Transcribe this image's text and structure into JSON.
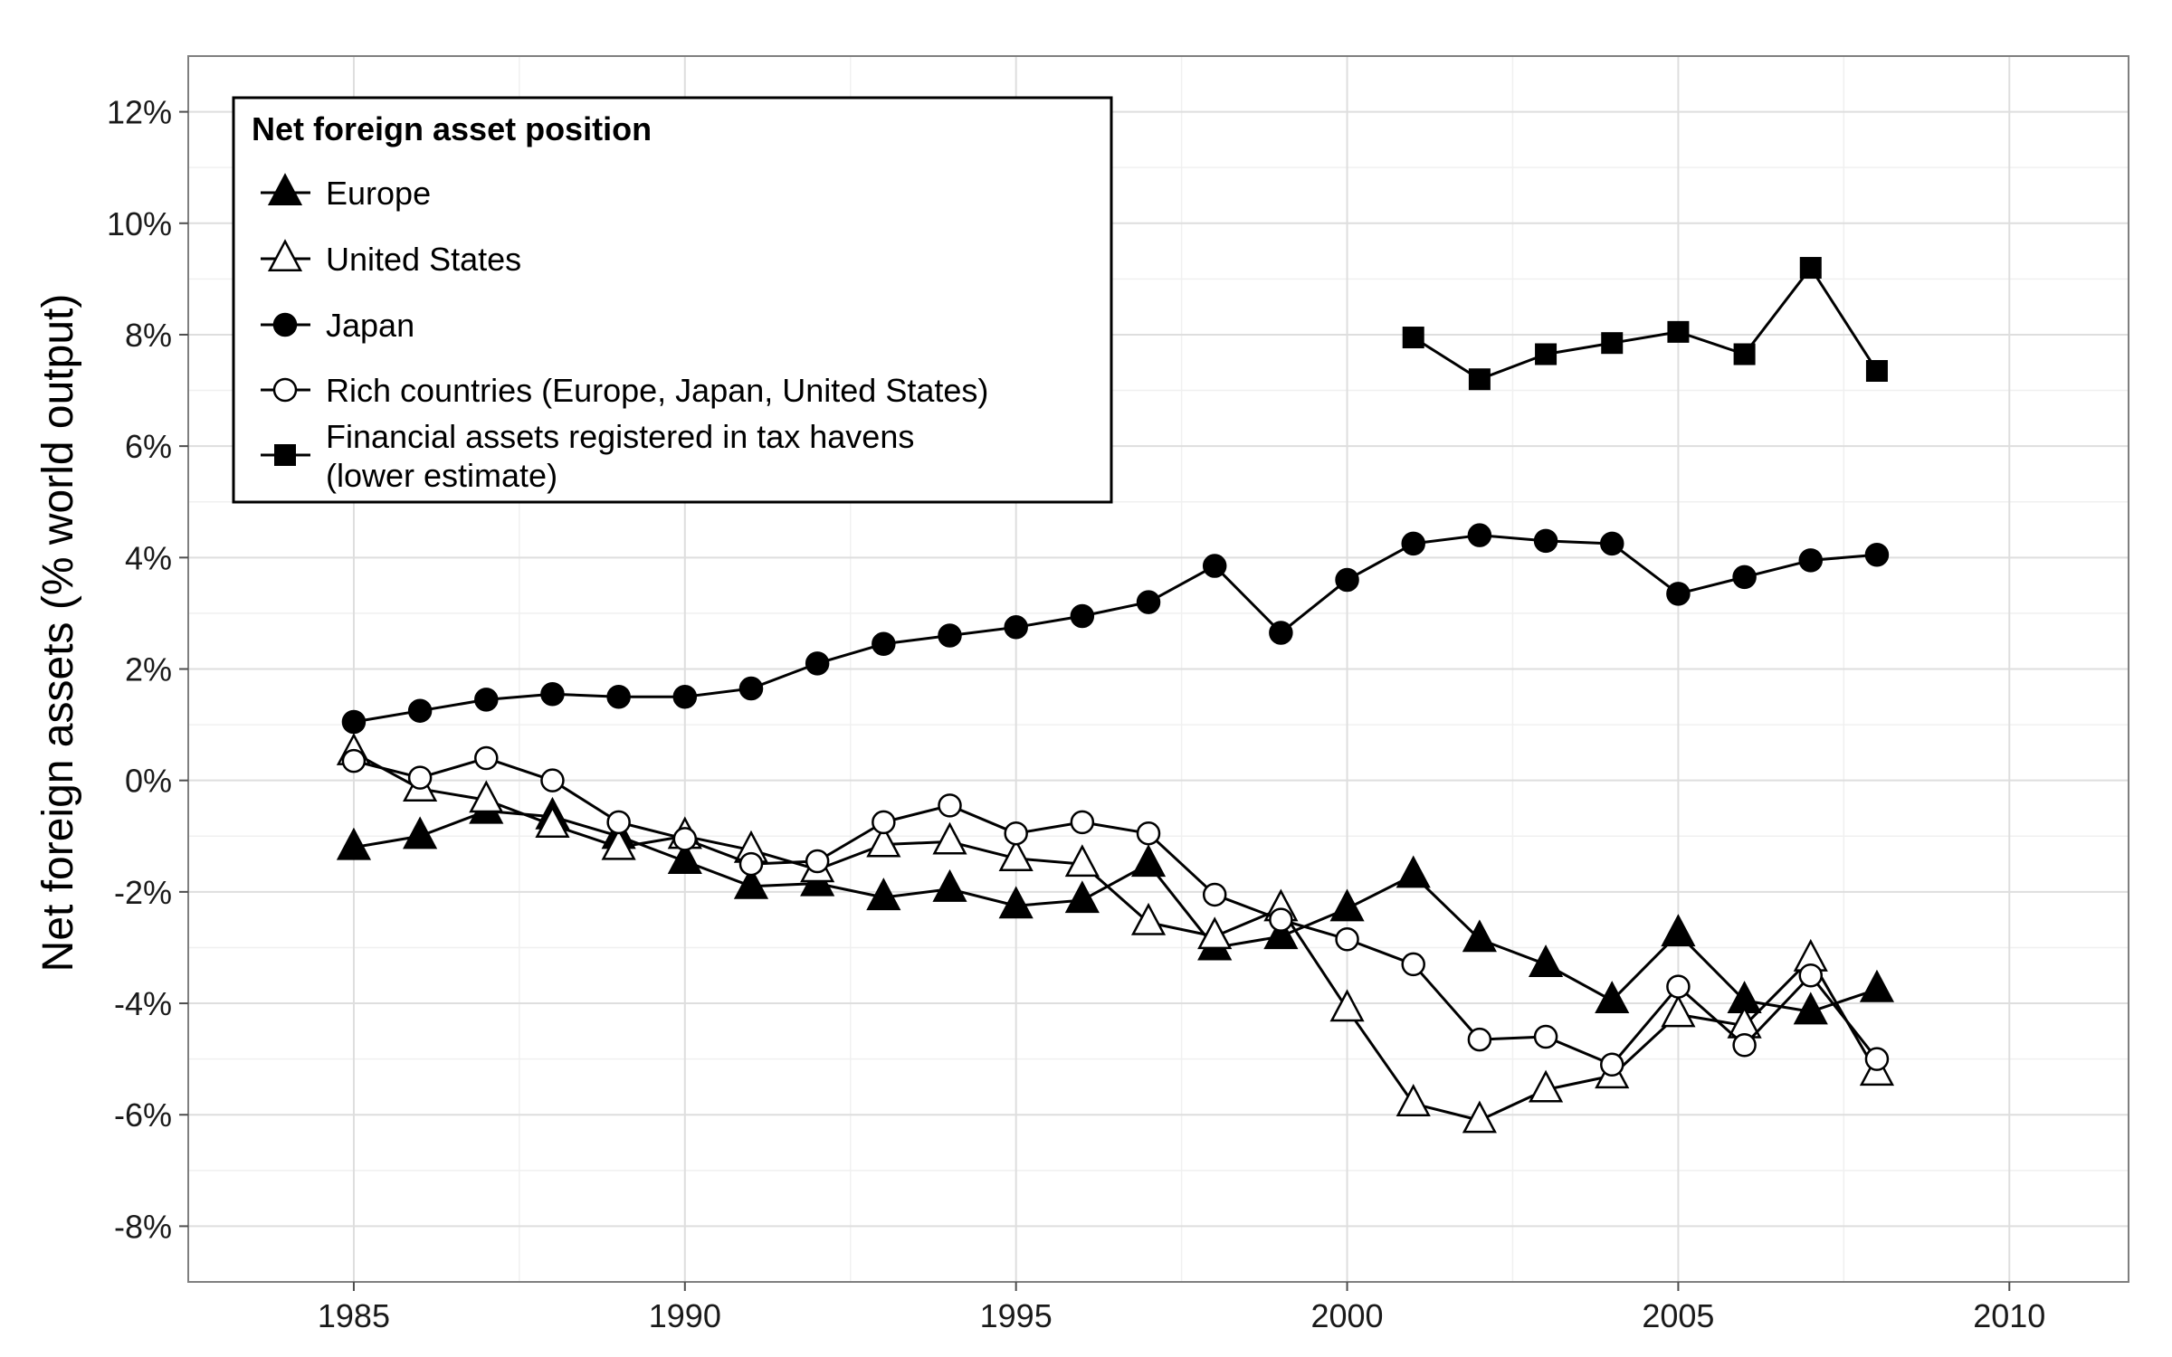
{
  "chart_data": {
    "type": "line",
    "xlabel": "",
    "ylabel": "Net foreign assets (% world output)",
    "xlim": [
      1982.5,
      2011.8
    ],
    "ylim": [
      -9,
      13
    ],
    "x_ticks": [
      1985,
      1990,
      1995,
      2000,
      2005,
      2010
    ],
    "x_tick_labels": [
      "1985",
      "1990",
      "1995",
      "2000",
      "2005",
      "2010"
    ],
    "y_ticks": [
      -8,
      -6,
      -4,
      -2,
      0,
      2,
      4,
      6,
      8,
      10,
      12
    ],
    "y_tick_labels": [
      "-8%",
      "-6%",
      "-4%",
      "-2%",
      "0%",
      "2%",
      "4%",
      "6%",
      "8%",
      "10%",
      "12%"
    ],
    "grid": true,
    "legend": {
      "title": "Net foreign asset position",
      "placement": "top-left",
      "entries": [
        {
          "label": "Europe",
          "marker": "triangle-filled"
        },
        {
          "label": "United States",
          "marker": "triangle-open"
        },
        {
          "label": "Japan",
          "marker": "circle-filled"
        },
        {
          "label": "Rich countries (Europe, Japan, United States)",
          "marker": "circle-open"
        },
        {
          "label_lines": [
            "Financial assets registered in tax havens",
            "(lower estimate)"
          ],
          "marker": "square-filled"
        }
      ]
    },
    "series": [
      {
        "name": "Europe",
        "marker": "triangle-filled",
        "x": [
          1985,
          1986,
          1987,
          1988,
          1989,
          1990,
          1991,
          1992,
          1993,
          1994,
          1995,
          1996,
          1997,
          1998,
          1999,
          2000,
          2001,
          2002,
          2003,
          2004,
          2005,
          2006,
          2007,
          2008
        ],
        "values": [
          -1.2,
          -1.0,
          -0.55,
          -0.65,
          -1.0,
          -1.45,
          -1.9,
          -1.85,
          -2.1,
          -1.95,
          -2.25,
          -2.15,
          -1.5,
          -3.0,
          -2.8,
          -2.3,
          -1.7,
          -2.85,
          -3.3,
          -3.95,
          -2.75,
          -3.95,
          -4.15,
          -3.75
        ]
      },
      {
        "name": "United States",
        "marker": "triangle-open",
        "x": [
          1985,
          1986,
          1987,
          1988,
          1989,
          1990,
          1991,
          1992,
          1993,
          1994,
          1995,
          1996,
          1997,
          1998,
          1999,
          2000,
          2001,
          2002,
          2003,
          2004,
          2005,
          2006,
          2007,
          2008
        ],
        "values": [
          0.5,
          -0.15,
          -0.35,
          -0.8,
          -1.2,
          -1.0,
          -1.25,
          -1.6,
          -1.15,
          -1.1,
          -1.4,
          -1.5,
          -2.55,
          -2.8,
          -2.3,
          -4.1,
          -5.8,
          -6.1,
          -5.55,
          -5.3,
          -4.2,
          -4.4,
          -3.2,
          -5.25
        ]
      },
      {
        "name": "Japan",
        "marker": "circle-filled",
        "x": [
          1985,
          1986,
          1987,
          1988,
          1989,
          1990,
          1991,
          1992,
          1993,
          1994,
          1995,
          1996,
          1997,
          1998,
          1999,
          2000,
          2001,
          2002,
          2003,
          2004,
          2005,
          2006,
          2007,
          2008
        ],
        "values": [
          1.05,
          1.25,
          1.45,
          1.55,
          1.5,
          1.5,
          1.65,
          2.1,
          2.45,
          2.6,
          2.75,
          2.95,
          3.2,
          3.85,
          2.65,
          3.6,
          4.25,
          4.4,
          4.3,
          4.25,
          3.35,
          3.65,
          3.95,
          4.05
        ]
      },
      {
        "name": "Rich countries (Europe, Japan, United States)",
        "marker": "circle-open",
        "x": [
          1985,
          1986,
          1987,
          1988,
          1989,
          1990,
          1991,
          1992,
          1993,
          1994,
          1995,
          1996,
          1997,
          1998,
          1999,
          2000,
          2001,
          2002,
          2003,
          2004,
          2005,
          2006,
          2007,
          2008
        ],
        "values": [
          0.35,
          0.05,
          0.4,
          0.0,
          -0.75,
          -1.05,
          -1.5,
          -1.45,
          -0.75,
          -0.45,
          -0.95,
          -0.75,
          -0.95,
          -2.05,
          -2.5,
          -2.85,
          -3.3,
          -4.65,
          -4.6,
          -5.1,
          -3.7,
          -4.75,
          -3.5,
          -5.0
        ]
      },
      {
        "name": "Financial assets registered in tax havens (lower estimate)",
        "marker": "square-filled",
        "x": [
          2001,
          2002,
          2003,
          2004,
          2005,
          2006,
          2007,
          2008
        ],
        "values": [
          7.95,
          7.2,
          7.65,
          7.85,
          8.05,
          7.65,
          9.2,
          7.35
        ]
      }
    ]
  }
}
